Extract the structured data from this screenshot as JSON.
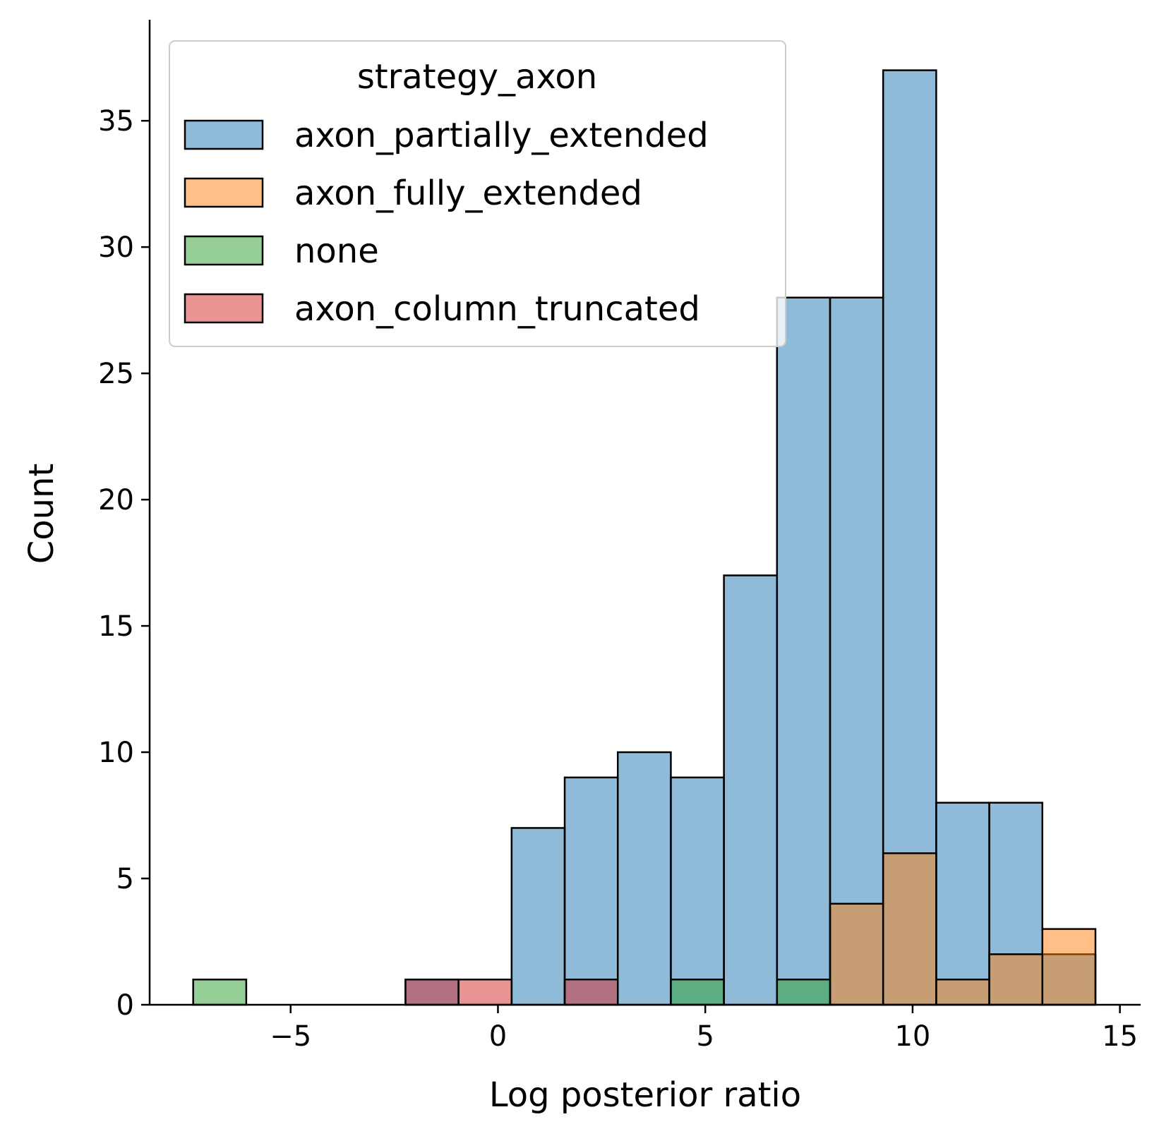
{
  "chart_data": {
    "type": "bar",
    "xlabel": "Log posterior ratio",
    "ylabel": "Count",
    "xlim": [
      -8.4,
      15.5
    ],
    "ylim": [
      0,
      39
    ],
    "x_ticks": [
      -5,
      0,
      5,
      10,
      15
    ],
    "x_tick_labels": [
      "−5",
      "0",
      "5",
      "10",
      "15"
    ],
    "y_ticks": [
      0,
      5,
      10,
      15,
      20,
      25,
      30,
      35
    ],
    "y_tick_labels": [
      "0",
      "5",
      "10",
      "15",
      "20",
      "25",
      "30",
      "35"
    ],
    "bin_edges": [
      -7.35,
      -6.07,
      -4.79,
      -3.51,
      -2.23,
      -0.95,
      0.33,
      1.61,
      2.89,
      4.17,
      5.45,
      6.73,
      8.01,
      9.29,
      10.57,
      11.85,
      13.13,
      14.41
    ],
    "legend": {
      "title": "strategy_axon",
      "placement": "top-left"
    },
    "series": [
      {
        "name": "axon_partially_extended",
        "color": "#1f77b4",
        "values": [
          0,
          0,
          0,
          0,
          1,
          0,
          7,
          9,
          10,
          9,
          17,
          28,
          28,
          37,
          8,
          8,
          2
        ]
      },
      {
        "name": "axon_fully_extended",
        "color": "#ff7f0e",
        "values": [
          0,
          0,
          0,
          0,
          0,
          0,
          0,
          0,
          0,
          0,
          0,
          0,
          4,
          6,
          1,
          2,
          3
        ]
      },
      {
        "name": "none",
        "color": "#2ca02c",
        "values": [
          1,
          0,
          0,
          0,
          0,
          0,
          0,
          0,
          0,
          1,
          0,
          1,
          0,
          0,
          0,
          0,
          0
        ]
      },
      {
        "name": "axon_column_truncated",
        "color": "#d62728",
        "values": [
          0,
          0,
          0,
          0,
          1,
          1,
          0,
          1,
          0,
          0,
          0,
          0,
          0,
          0,
          0,
          0,
          0
        ]
      }
    ],
    "grid": false
  }
}
